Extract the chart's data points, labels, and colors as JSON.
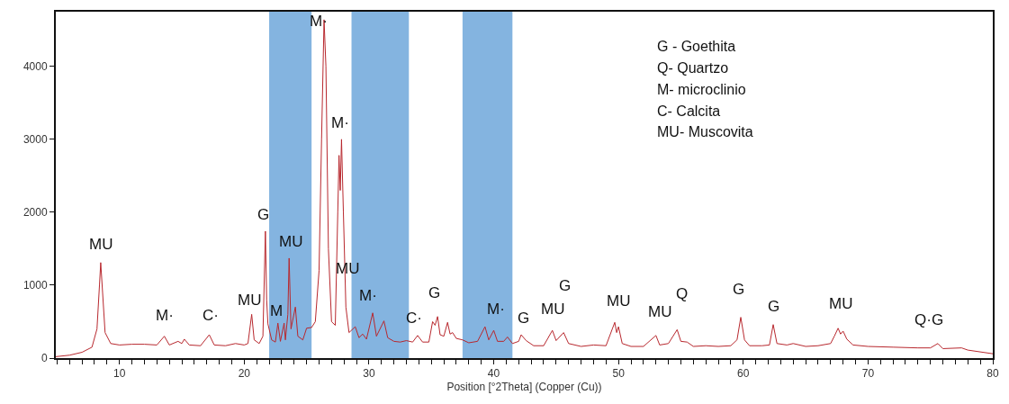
{
  "chart_data": {
    "type": "line",
    "xlabel": "Position [°2Theta] (Copper (Cu))",
    "x": [
      4.9,
      6,
      7,
      7.8,
      8.2,
      8.4,
      8.5,
      8.65,
      8.85,
      9.3,
      10,
      11,
      12,
      13,
      13.6,
      14,
      14.7,
      15,
      15.2,
      15.6,
      16.5,
      17.2,
      17.6,
      18.5,
      19.3,
      20,
      20.3,
      20.6,
      20.8,
      21.2,
      21.5,
      21.7,
      21.8,
      21.9,
      22.2,
      22.5,
      22.7,
      22.9,
      23.2,
      23.3,
      23.5,
      23.6,
      23.75,
      24.1,
      24.3,
      24.7,
      25.0,
      25.4,
      25.7,
      26.0,
      26.2,
      26.4,
      26.55,
      26.75,
      27.0,
      27.3,
      27.5,
      27.6,
      27.7,
      27.8,
      27.95,
      28.15,
      28.4,
      28.9,
      29.2,
      29.5,
      29.8,
      30.3,
      30.6,
      31.2,
      31.5,
      32,
      32.5,
      33,
      33.5,
      33.9,
      34.3,
      34.8,
      35.1,
      35.3,
      35.5,
      35.7,
      36.0,
      36.3,
      36.5,
      36.7,
      37.0,
      37.5,
      38.0,
      38.7,
      39.3,
      39.6,
      40.0,
      40.3,
      40.8,
      41.1,
      41.5,
      42.0,
      42.2,
      42.6,
      43.2,
      44.0,
      44.7,
      45.0,
      45.6,
      46.0,
      47.0,
      48.0,
      49.0,
      49.7,
      49.85,
      50.0,
      50.3,
      51.0,
      52.0,
      53.0,
      53.3,
      54.0,
      54.7,
      55.0,
      55.5,
      56.0,
      57.0,
      58.0,
      59.0,
      59.5,
      59.8,
      60.1,
      60.5,
      61.5,
      62.1,
      62.4,
      62.7,
      63.5,
      64.0,
      65.0,
      66.0,
      67.0,
      67.3,
      67.6,
      67.8,
      68.0,
      68.3,
      68.8,
      70,
      72,
      74,
      75.0,
      75.6,
      76,
      77.5,
      78,
      80
    ],
    "series": [
      {
        "color": "#b8282e",
        "values": [
          20,
          40,
          80,
          150,
          400,
          1000,
          1310,
          900,
          350,
          200,
          180,
          190,
          190,
          180,
          300,
          180,
          230,
          200,
          260,
          180,
          170,
          320,
          180,
          170,
          200,
          180,
          200,
          600,
          250,
          200,
          300,
          1740,
          800,
          470,
          250,
          220,
          480,
          230,
          480,
          250,
          600,
          1370,
          400,
          700,
          300,
          250,
          410,
          420,
          500,
          1200,
          3000,
          4640,
          4000,
          1500,
          500,
          450,
          2000,
          2780,
          2300,
          3000,
          2000,
          700,
          350,
          430,
          280,
          330,
          260,
          620,
          300,
          510,
          280,
          230,
          220,
          240,
          220,
          310,
          220,
          220,
          500,
          450,
          570,
          320,
          300,
          490,
          330,
          350,
          270,
          250,
          210,
          230,
          430,
          250,
          380,
          230,
          230,
          290,
          200,
          230,
          320,
          240,
          170,
          170,
          380,
          240,
          350,
          200,
          160,
          180,
          170,
          490,
          350,
          430,
          200,
          160,
          160,
          310,
          180,
          200,
          390,
          230,
          220,
          160,
          170,
          160,
          170,
          250,
          560,
          250,
          170,
          170,
          180,
          460,
          200,
          180,
          200,
          160,
          170,
          200,
          300,
          410,
          330,
          370,
          260,
          180,
          160,
          150,
          140,
          140,
          200,
          130,
          140,
          110,
          60
        ]
      }
    ],
    "xlim": [
      4.9,
      80
    ],
    "xticks": [
      {
        "value": 5,
        "label": null
      },
      {
        "value": 6,
        "label": null
      },
      {
        "value": 7,
        "label": null
      },
      {
        "value": 8,
        "label": null
      },
      {
        "value": 9,
        "label": null
      },
      10,
      {
        "value": 11,
        "label": null
      },
      {
        "value": 12,
        "label": null
      },
      {
        "value": 13,
        "label": null
      },
      {
        "value": 14,
        "label": null
      },
      {
        "value": 15,
        "label": null
      },
      {
        "value": 16,
        "label": null
      },
      {
        "value": 17,
        "label": null
      },
      {
        "value": 18,
        "label": null
      },
      {
        "value": 19,
        "label": null
      },
      20,
      {
        "value": 21,
        "label": null
      },
      {
        "value": 22,
        "label": null
      },
      {
        "value": 23,
        "label": null
      },
      {
        "value": 24,
        "label": null
      },
      {
        "value": 25,
        "label": null
      },
      {
        "value": 26,
        "label": null
      },
      {
        "value": 27,
        "label": null
      },
      {
        "value": 28,
        "label": null
      },
      {
        "value": 29,
        "label": null
      },
      30,
      {
        "value": 31,
        "label": null
      },
      {
        "value": 32,
        "label": null
      },
      {
        "value": 33,
        "label": null
      },
      {
        "value": 34,
        "label": null
      },
      {
        "value": 35,
        "label": null
      },
      {
        "value": 36,
        "label": null
      },
      {
        "value": 37,
        "label": null
      },
      {
        "value": 38,
        "label": null
      },
      {
        "value": 39,
        "label": null
      },
      40,
      {
        "value": 41,
        "label": null
      },
      {
        "value": 42,
        "label": null
      },
      {
        "value": 43,
        "label": null
      },
      {
        "value": 44,
        "label": null
      },
      {
        "value": 45,
        "label": null
      },
      {
        "value": 46,
        "label": null
      },
      {
        "value": 47,
        "label": null
      },
      {
        "value": 48,
        "label": null
      },
      {
        "value": 49,
        "label": null
      },
      50,
      {
        "value": 51,
        "label": null
      },
      {
        "value": 52,
        "label": null
      },
      {
        "value": 53,
        "label": null
      },
      {
        "value": 54,
        "label": null
      },
      {
        "value": 55,
        "label": null
      },
      {
        "value": 56,
        "label": null
      },
      {
        "value": 57,
        "label": null
      },
      {
        "value": 58,
        "label": null
      },
      {
        "value": 59,
        "label": null
      },
      60,
      {
        "value": 61,
        "label": null
      },
      {
        "value": 62,
        "label": null
      },
      {
        "value": 63,
        "label": null
      },
      {
        "value": 64,
        "label": null
      },
      {
        "value": 65,
        "label": null
      },
      {
        "value": 66,
        "label": null
      },
      {
        "value": 67,
        "label": null
      },
      {
        "value": 68,
        "label": null
      },
      {
        "value": 69,
        "label": null
      },
      70,
      {
        "value": 71,
        "label": null
      },
      {
        "value": 72,
        "label": null
      },
      {
        "value": 73,
        "label": null
      },
      {
        "value": 74,
        "label": null
      },
      {
        "value": 75,
        "label": null
      },
      {
        "value": 76,
        "label": null
      },
      {
        "value": 77,
        "label": null
      },
      {
        "value": 78,
        "label": null
      },
      {
        "value": 79,
        "label": null
      },
      80
    ],
    "ylim": [
      0,
      4750
    ],
    "yticks": [
      0,
      1000,
      2000,
      3000,
      4000
    ],
    "grid": false,
    "bands": [
      {
        "axis": "x",
        "from": 22.0,
        "to": 25.4,
        "color": "#5b9bd5"
      },
      {
        "axis": "x",
        "from": 28.6,
        "to": 33.2,
        "color": "#5b9bd5"
      },
      {
        "axis": "x",
        "from": 37.5,
        "to": 41.5,
        "color": "#5b9bd5"
      }
    ],
    "annotations": [
      "MU",
      "M·",
      "C·",
      "MU",
      "G",
      "M",
      "MU",
      "M·",
      "M·",
      "MU",
      "M·",
      "C·",
      "G",
      "M·",
      "G",
      "MU",
      "G",
      "MU",
      "MU",
      "Q",
      "G",
      "G",
      "MU",
      "Q·G",
      "G - Goethita",
      "Q- Quartzo",
      "M- microclinio",
      "C- Calcita",
      "MU- Muscovita"
    ]
  }
}
